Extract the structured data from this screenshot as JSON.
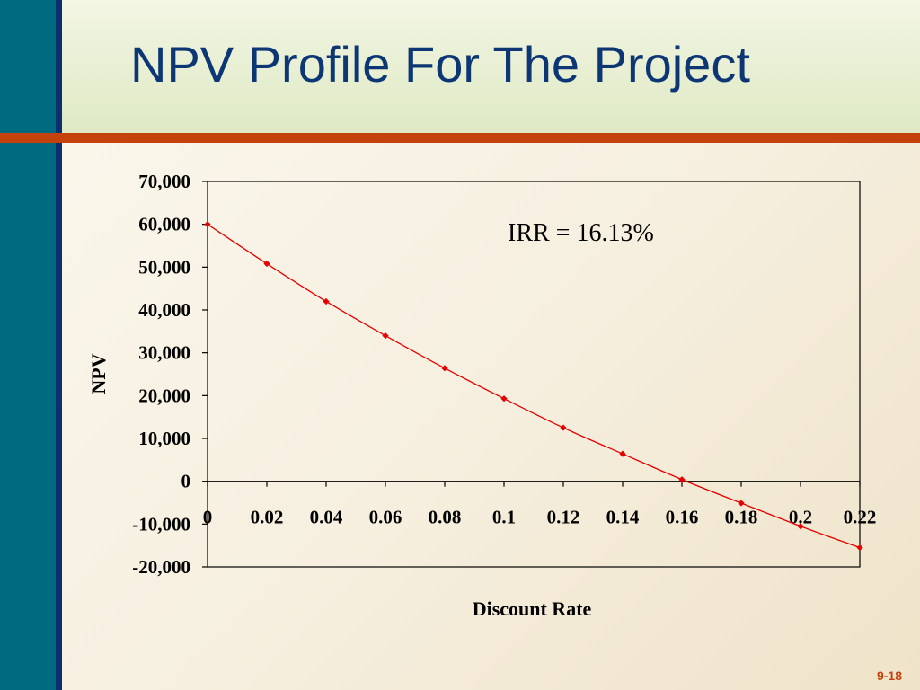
{
  "slide": {
    "title": "NPV Profile For The Project",
    "page_number": "9-18"
  },
  "colors": {
    "left_band": "#006a80",
    "accent_bar": "#c4420c",
    "title_text": "#0d3774",
    "series": "#e60000"
  },
  "chart_data": {
    "type": "line",
    "xlabel": "Discount Rate",
    "ylabel": "NPV",
    "ylim": [
      -20000,
      70000
    ],
    "xlim": [
      0,
      0.22
    ],
    "x_tick_labels": [
      "0",
      "0.02",
      "0.04",
      "0.06",
      "0.08",
      "0.1",
      "0.12",
      "0.14",
      "0.16",
      "0.18",
      "0.2",
      "0.22"
    ],
    "y_tick_labels": [
      "70,000",
      "60,000",
      "50,000",
      "40,000",
      "30,000",
      "20,000",
      "10,000",
      "0",
      "-10,000",
      "-20,000"
    ],
    "grid": false,
    "markers": true,
    "series": [
      {
        "x": [
          0,
          0.02,
          0.04,
          0.06,
          0.08,
          0.1,
          0.12,
          0.14,
          0.16,
          0.18,
          0.2,
          0.22
        ],
        "values": [
          60000,
          50800,
          42000,
          34000,
          26400,
          19300,
          12500,
          6400,
          400,
          -5100,
          -10500,
          -15500
        ]
      }
    ],
    "annotations": [
      {
        "text": "IRR = 16.13%"
      }
    ]
  }
}
